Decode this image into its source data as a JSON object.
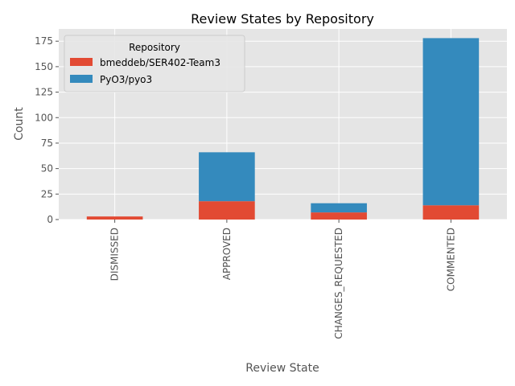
{
  "chart_data": {
    "type": "bar",
    "stacked": true,
    "title": "Review States by Repository",
    "xlabel": "Review State",
    "ylabel": "Count",
    "categories": [
      "DISMISSED",
      "APPROVED",
      "CHANGES_REQUESTED",
      "COMMENTED"
    ],
    "series": [
      {
        "name": "bmeddeb/SER402-Team3",
        "values": [
          3,
          18,
          7,
          14
        ],
        "color": "#E24A33"
      },
      {
        "name": "PyO3/pyo3",
        "values": [
          0,
          48,
          9,
          164
        ],
        "color": "#348ABD"
      }
    ],
    "ylim": [
      0,
      187
    ],
    "yticks": [
      0,
      25,
      50,
      75,
      100,
      125,
      150,
      175
    ],
    "grid": true,
    "legend": {
      "title": "Repository",
      "position": "top-left"
    },
    "style": {
      "background": "#E5E5E5",
      "grid_color": "#FFFFFF"
    }
  }
}
